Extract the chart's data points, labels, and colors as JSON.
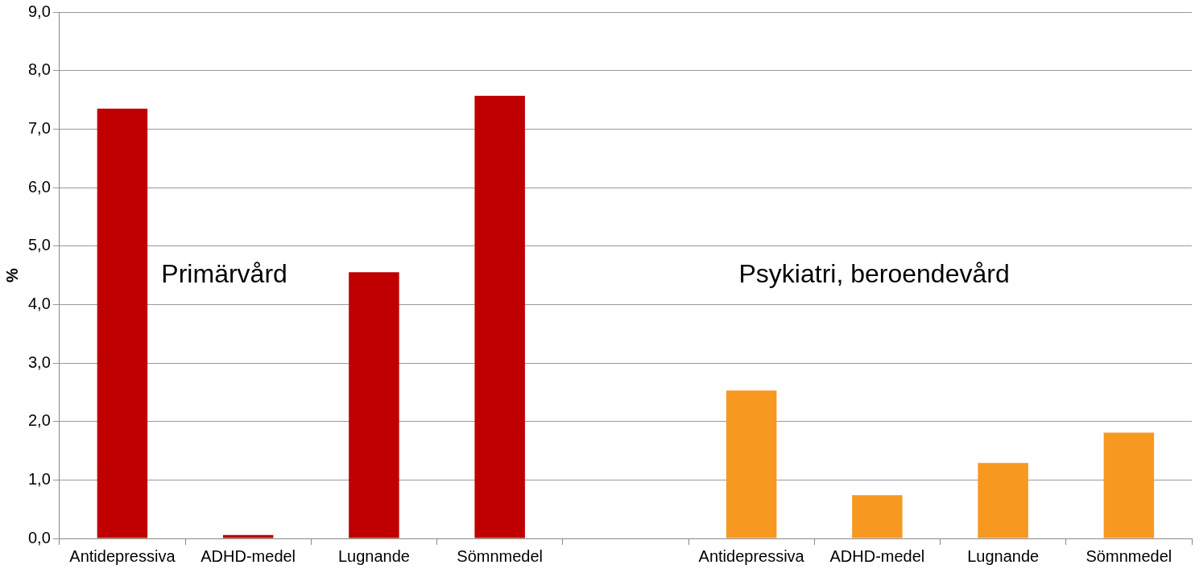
{
  "chart_data": {
    "type": "bar",
    "ylabel": "%",
    "categories": [
      "Antidepressiva",
      "ADHD-medel",
      "Lugnande",
      "Sömnmedel",
      null,
      "Antidepressiva",
      "ADHD-medel",
      "Lugnande",
      "Sömnmedel"
    ],
    "series": [
      {
        "color": "#c00000",
        "values": [
          7.35,
          0.06,
          4.55,
          7.57,
          null,
          null,
          null,
          null,
          null
        ]
      },
      {
        "color": "#f79820",
        "values": [
          null,
          null,
          null,
          null,
          null,
          2.53,
          0.74,
          1.29,
          1.81
        ]
      }
    ],
    "ylim": [
      0,
      9
    ],
    "yticks": [
      {
        "value": 0,
        "label": "0,0"
      },
      {
        "value": 1,
        "label": "1,0"
      },
      {
        "value": 2,
        "label": "2,0"
      },
      {
        "value": 3,
        "label": "3,0"
      },
      {
        "value": 4,
        "label": "4,0"
      },
      {
        "value": 5,
        "label": "5,0"
      },
      {
        "value": 6,
        "label": "6,0"
      },
      {
        "value": 7,
        "label": "7,0"
      },
      {
        "value": 8,
        "label": "8,0"
      },
      {
        "value": 9,
        "label": "9,0"
      }
    ],
    "grid": "y",
    "legend": false,
    "annotations": [
      "Primärvård",
      "Psykiatri, beroendevård"
    ]
  }
}
